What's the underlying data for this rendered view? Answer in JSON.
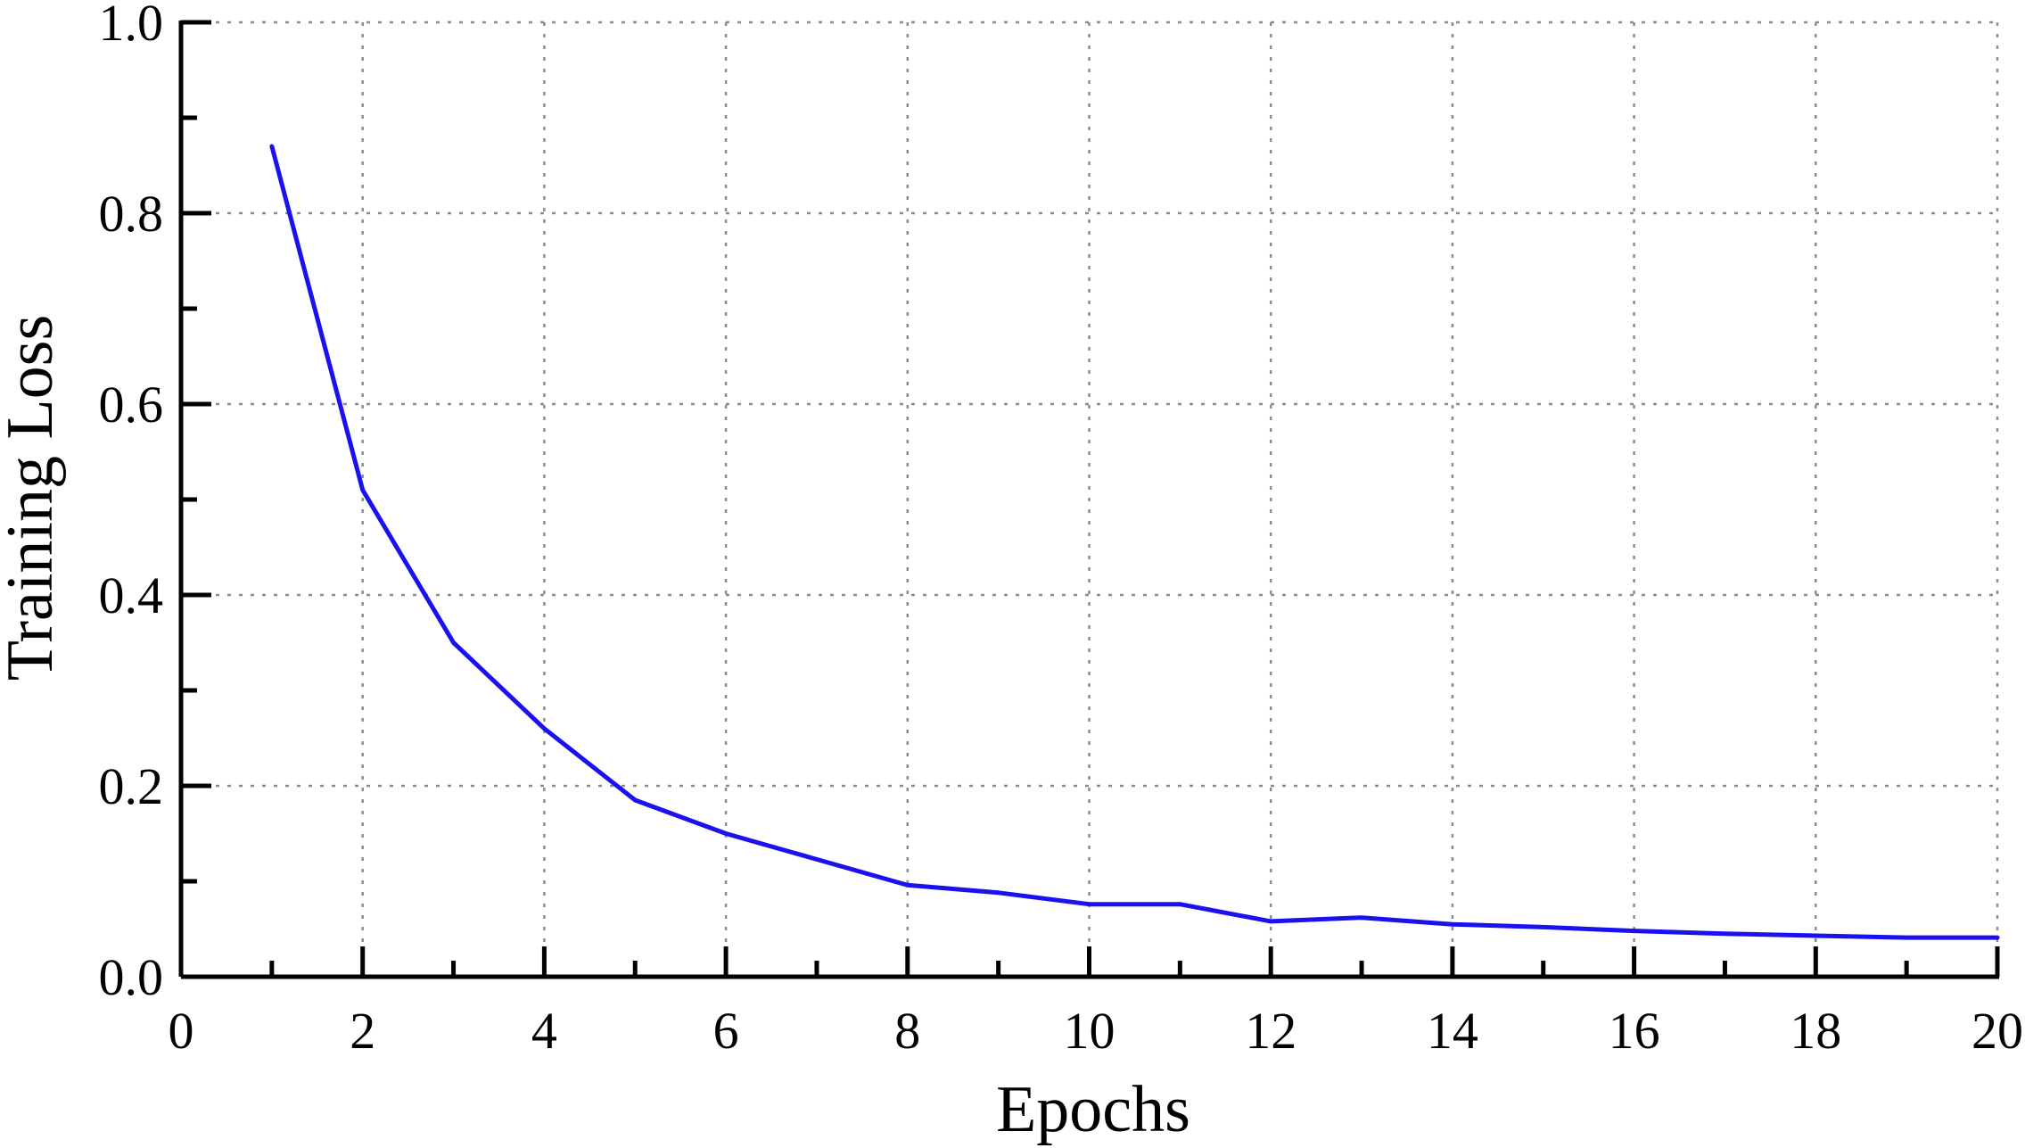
{
  "chart_data": {
    "type": "line",
    "xlabel": "Epochs",
    "ylabel": "Training Loss",
    "xlim": [
      0,
      20
    ],
    "ylim": [
      0.0,
      1.0
    ],
    "x_ticks": [
      "0",
      "2",
      "4",
      "6",
      "8",
      "10",
      "12",
      "14",
      "16",
      "18",
      "20"
    ],
    "y_ticks": [
      "0.0",
      "0.2",
      "0.4",
      "0.6",
      "0.8",
      "1.0"
    ],
    "grid": true,
    "series": [
      {
        "color": "#1a10f0",
        "x": [
          1,
          2,
          3,
          4,
          5,
          6,
          7,
          8,
          9,
          10,
          11,
          12,
          13,
          14,
          15,
          16,
          17,
          18,
          19,
          20
        ],
        "y": [
          0.87,
          0.51,
          0.35,
          0.26,
          0.185,
          0.15,
          0.123,
          0.096,
          0.088,
          0.076,
          0.076,
          0.058,
          0.062,
          0.055,
          0.052,
          0.048,
          0.045,
          0.043,
          0.041,
          0.041
        ]
      }
    ]
  }
}
